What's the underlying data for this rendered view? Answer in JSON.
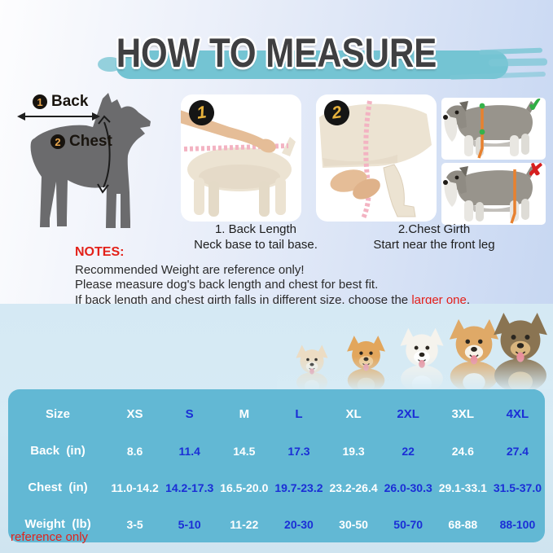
{
  "title": "HOW TO MEASURE",
  "diagram": {
    "back_num": "1",
    "back_label": "Back",
    "chest_num": "2",
    "chest_label": "Chest"
  },
  "steps": [
    {
      "num": "1",
      "caption_line1": "1. Back Length",
      "caption_line2": "Neck base to tail base."
    },
    {
      "num": "2",
      "caption_line1": "2.Chest Girth",
      "caption_line2": "Start near the front leg"
    }
  ],
  "marks": {
    "correct": "✔",
    "incorrect": "✘"
  },
  "notes": {
    "heading": "NOTES:",
    "line1": "Recommended Weight are reference only!",
    "line2": "Please measure dog's back length and chest for best fit.",
    "line3_prefix": "If back length and chest girth falls in different size, choose the ",
    "line3_highlight": "larger one",
    "line3_suffix": "."
  },
  "table": {
    "headers": [
      "Size",
      "XS",
      "S",
      "M",
      "L",
      "XL",
      "2XL",
      "3XL",
      "4XL"
    ],
    "rows": [
      {
        "label": "Back  (in)",
        "values": [
          "8.6",
          "11.4",
          "14.5",
          "17.3",
          "19.3",
          "22",
          "24.6",
          "27.4"
        ]
      },
      {
        "label": "Chest  (in)",
        "values": [
          "11.0-14.2",
          "14.2-17.3",
          "16.5-20.0",
          "19.7-23.2",
          "23.2-26.4",
          "26.0-30.3",
          "29.1-33.1",
          "31.5-37.0"
        ]
      },
      {
        "label": "Weight  (lb)",
        "values": [
          "3-5",
          "5-10",
          "11-22",
          "20-30",
          "30-50",
          "50-70",
          "68-88",
          "88-100"
        ]
      }
    ],
    "footnote": "reference only"
  },
  "colors": {
    "accent_teal": "#74c4d3",
    "table_bg": "#62b8d4",
    "table_blue_text": "#1b2ed6",
    "note_red": "#e32119",
    "tape_pink": "#f3b3c2",
    "tape_orange": "#e8812f",
    "check_green": "#2fae44",
    "cross_red": "#d61f1f"
  },
  "breed_dogs": [
    {
      "name": "chihuahua",
      "body": "#ecdcc3",
      "accent": "#f8f1e4",
      "h": 62
    },
    {
      "name": "pomeranian",
      "body": "#e2a65c",
      "accent": "#f0ca92",
      "h": 74
    },
    {
      "name": "bichon-frise",
      "body": "#f5f3ed",
      "accent": "#ffffff",
      "h": 84
    },
    {
      "name": "corgi",
      "body": "#dfa967",
      "accent": "#f7f2e8",
      "h": 96
    },
    {
      "name": "german-shepherd",
      "body": "#8a7452",
      "accent": "#d9b57e",
      "h": 104
    }
  ]
}
